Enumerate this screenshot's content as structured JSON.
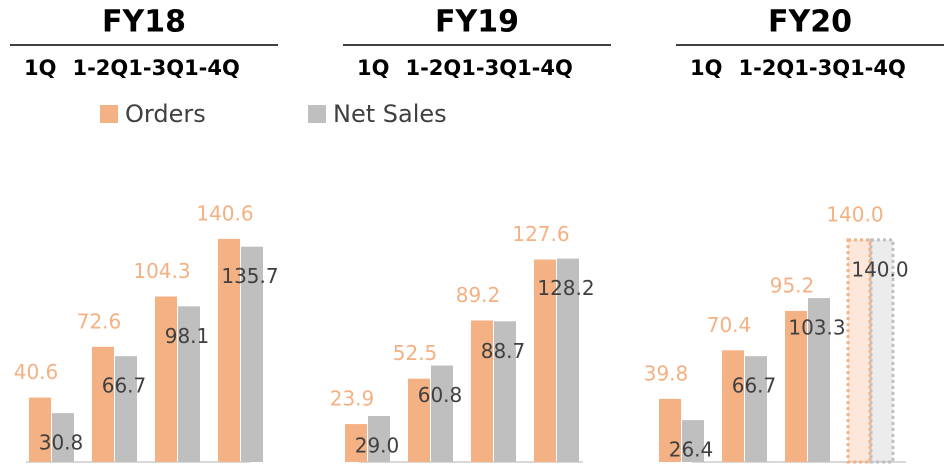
{
  "chart_data": {
    "type": "bar",
    "groups": [
      {
        "title": "FY18",
        "categories": [
          "1Q",
          "1-2Q",
          "1-3Q",
          "1-4Q"
        ]
      },
      {
        "title": "FY19",
        "categories": [
          "1Q",
          "1-2Q",
          "1-3Q",
          "1-4Q"
        ]
      },
      {
        "title": "FY20",
        "categories": [
          "1Q",
          "1-2Q",
          "1-3Q",
          "1-4Q"
        ],
        "forecast_categories": [
          "1-4Q"
        ]
      }
    ],
    "series": [
      {
        "name": "Orders",
        "color": "#f4b183",
        "values": [
          40.6,
          72.6,
          104.3,
          140.6,
          23.9,
          52.5,
          89.2,
          127.6,
          39.8,
          70.4,
          95.2,
          140.0
        ],
        "value_labels": [
          "40.6",
          "72.6",
          "104.3",
          "140.6",
          "23.9",
          "52.5",
          "89.2",
          "127.6",
          "39.8",
          "70.4",
          "95.2",
          "140.0"
        ]
      },
      {
        "name": "Net Sales",
        "color": "#bfbfbf",
        "values": [
          30.8,
          66.7,
          98.1,
          135.7,
          29.0,
          60.8,
          88.7,
          128.2,
          26.4,
          66.7,
          103.3,
          140.0
        ],
        "value_labels": [
          "30.8",
          "66.7",
          "98.1",
          "135.7",
          "29.0",
          "60.8",
          "88.7",
          "128.2",
          "26.4",
          "66.7",
          "103.3",
          "140.0"
        ]
      }
    ],
    "ylim": [
      0,
      150
    ]
  }
}
